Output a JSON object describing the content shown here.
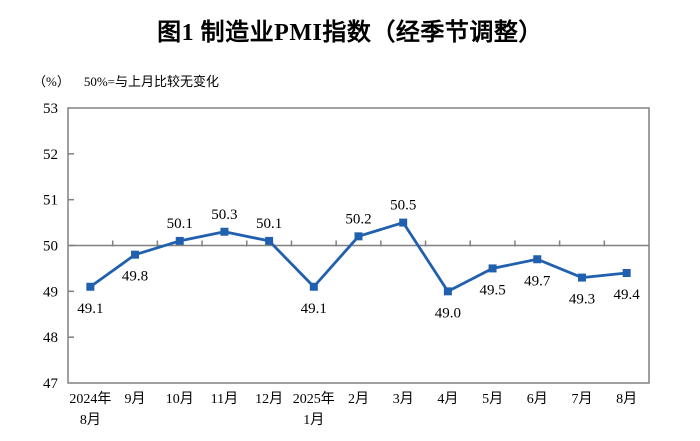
{
  "chart_data": {
    "type": "line",
    "title": "图1 制造业PMI指数（经季节调整）",
    "unit_label": "（%）",
    "note": "50%=与上月比较无变化",
    "categories": [
      [
        "2024年",
        "8月"
      ],
      [
        "9月"
      ],
      [
        "10月"
      ],
      [
        "11月"
      ],
      [
        "12月"
      ],
      [
        "2025年",
        "1月"
      ],
      [
        "2月"
      ],
      [
        "3月"
      ],
      [
        "4月"
      ],
      [
        "5月"
      ],
      [
        "6月"
      ],
      [
        "7月"
      ],
      [
        "8月"
      ]
    ],
    "values": [
      49.1,
      49.8,
      50.1,
      50.3,
      50.1,
      49.1,
      50.2,
      50.5,
      49.0,
      49.5,
      49.7,
      49.3,
      49.4
    ],
    "label_positions": [
      "below",
      "below",
      "above",
      "above",
      "above",
      "below",
      "above",
      "above",
      "below",
      "below",
      "below",
      "below",
      "below"
    ],
    "ylim": [
      47,
      53
    ],
    "yticks": [
      47,
      48,
      49,
      50,
      51,
      52,
      53
    ],
    "reference_line_y": 50,
    "grid": false,
    "legend_position": "none",
    "colors": {
      "line": "#2060AE",
      "marker": "#2060AE",
      "axis": "#808080",
      "text": "#000000",
      "background": "#FFFFFF"
    }
  }
}
